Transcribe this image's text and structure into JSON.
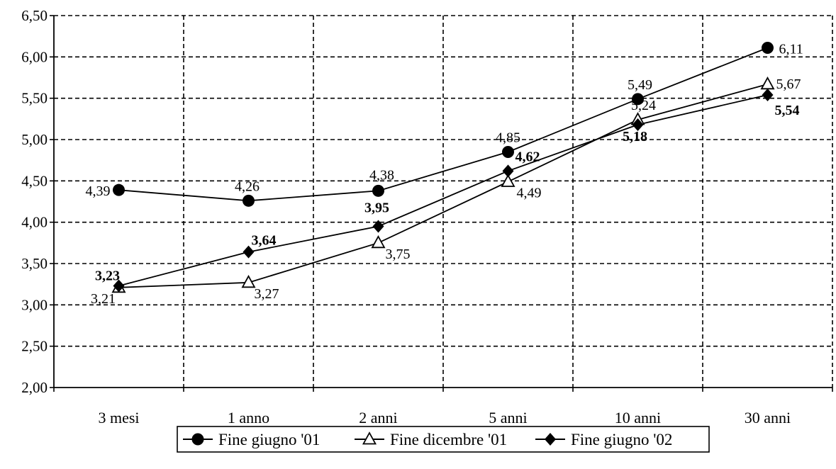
{
  "chart_data": {
    "type": "line",
    "title": "",
    "xlabel": "",
    "ylabel": "",
    "categories": [
      "3 mesi",
      "1 anno",
      "2 anni",
      "5 anni",
      "10 anni",
      "30 anni"
    ],
    "ylim": [
      2.0,
      6.5
    ],
    "yticks": [
      "2,00",
      "2,50",
      "3,00",
      "3,50",
      "4,00",
      "4,50",
      "5,00",
      "5,50",
      "6,00",
      "6,50"
    ],
    "grid": true,
    "legend_position": "bottom",
    "series": [
      {
        "name": "Fine giugno '01",
        "marker": "circle",
        "values": [
          4.39,
          4.26,
          4.38,
          4.85,
          5.49,
          6.11
        ],
        "labels": [
          "4,39",
          "4,26",
          "4,38",
          "4,85",
          "5,49",
          "6,11"
        ]
      },
      {
        "name": "Fine dicembre '01",
        "marker": "triangle",
        "values": [
          3.21,
          3.27,
          3.75,
          4.49,
          5.24,
          5.67
        ],
        "labels": [
          "3,21",
          "3,27",
          "3,75",
          "4,49",
          "5,24",
          "5,67"
        ]
      },
      {
        "name": "Fine giugno '02",
        "marker": "diamond",
        "values": [
          3.23,
          3.64,
          3.95,
          4.62,
          5.18,
          5.54
        ],
        "labels": [
          "3,23",
          "3,64",
          "3,95",
          "4,62",
          "5,18",
          "5,54"
        ]
      }
    ]
  }
}
